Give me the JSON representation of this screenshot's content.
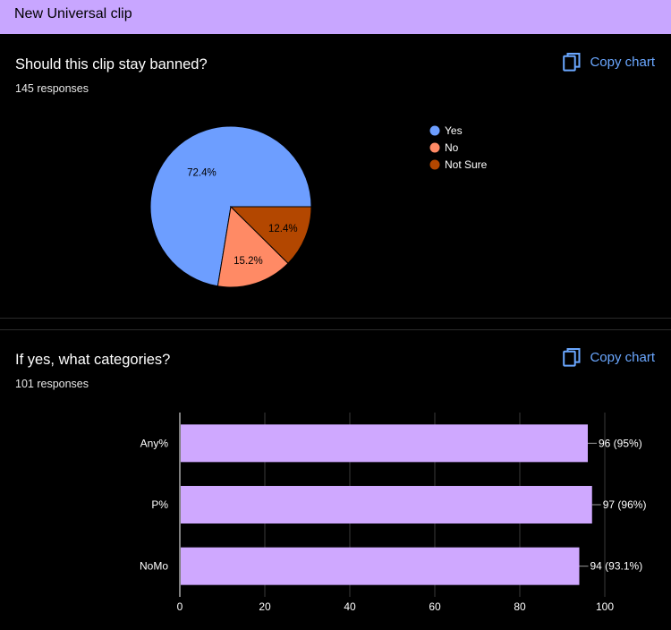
{
  "form": {
    "title": "New Universal clip"
  },
  "questions": [
    {
      "title": "Should this clip stay banned?",
      "responses": "145 responses",
      "copy_label": "Copy chart"
    },
    {
      "title": "If yes, what categories?",
      "responses": "101 responses",
      "copy_label": "Copy chart"
    }
  ],
  "colors": {
    "header_bg": "#c8a6ff",
    "accent_link": "#6aa7ff",
    "pie_yes": "#6d9eff",
    "pie_no": "#ff8a65",
    "pie_not_sure": "#b34700",
    "bar_fill": "#cfa8ff"
  },
  "chart_data": [
    {
      "type": "pie",
      "slices": [
        {
          "label": "Yes",
          "value": 72.4,
          "data_label": "72.4%",
          "color": "#6d9eff"
        },
        {
          "label": "No",
          "value": 15.2,
          "data_label": "15.2%",
          "color": "#ff8a65"
        },
        {
          "label": "Not Sure",
          "value": 12.4,
          "data_label": "12.4%",
          "color": "#b34700"
        }
      ],
      "legend": "right"
    },
    {
      "type": "bar",
      "orientation": "horizontal",
      "categories": [
        "Any%",
        "P%",
        "NoMo"
      ],
      "values": [
        96,
        97,
        94
      ],
      "data_labels": [
        "96 (95%)",
        "97 (96%)",
        "94 (93.1%)"
      ],
      "xlim": [
        0,
        100
      ],
      "xticks": [
        "0",
        "20",
        "40",
        "60",
        "80",
        "100"
      ],
      "grid": true
    }
  ]
}
